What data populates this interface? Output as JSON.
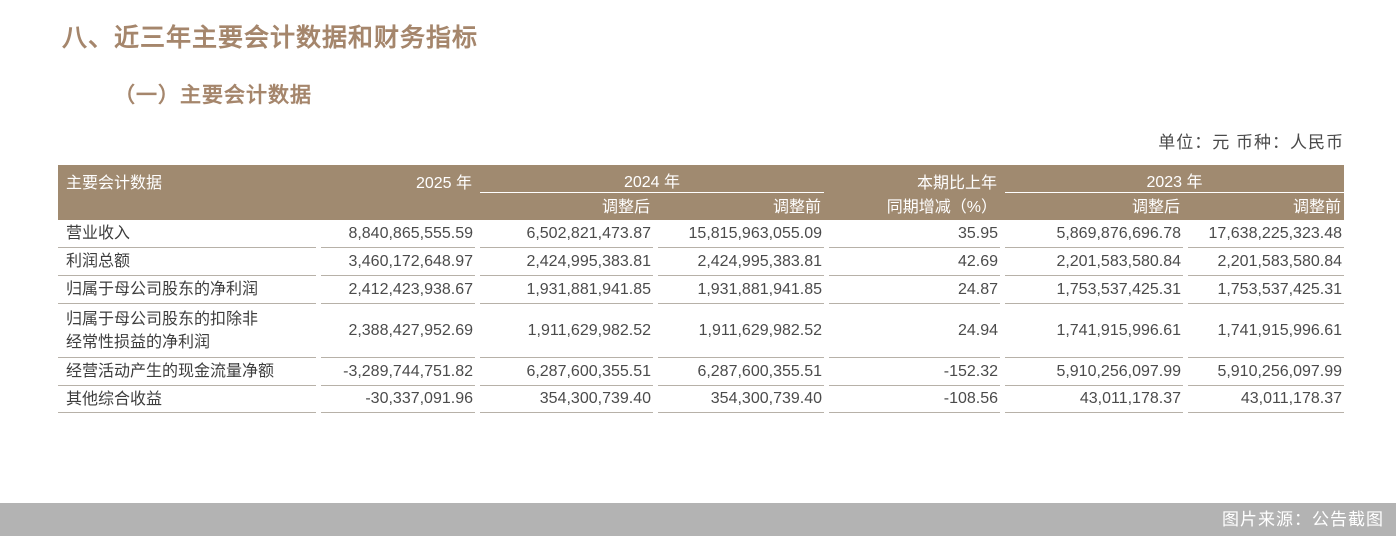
{
  "page": {
    "title": "八、近三年主要会计数据和财务指标",
    "subtitle": "（一）主要会计数据",
    "unit_note": "单位：元  币种：人民币",
    "source_note": "图片来源：公告截图"
  },
  "colors": {
    "brand_brown": "#a08a70",
    "title_brown": "#a5866c",
    "row_line": "#b7b1a8",
    "source_bar_bg": "#b3b3b3"
  },
  "table": {
    "header": {
      "col_label": "主要会计数据",
      "col_2025": "2025 年",
      "col_2024": "2024 年",
      "col_change_line1": "本期比上年",
      "col_change_line2": "同期增减（%）",
      "col_2023": "2023 年",
      "sub_2024_after": "调整后",
      "sub_2024_before": "调整前",
      "sub_2023_after": "调整后",
      "sub_2023_before": "调整前"
    },
    "rows": [
      {
        "label": "营业收入",
        "y2025": "8,840,865,555.59",
        "y2024_after": "6,502,821,473.87",
        "y2024_before": "15,815,963,055.09",
        "change": "35.95",
        "y2023_after": "5,869,876,696.78",
        "y2023_before": "17,638,225,323.48"
      },
      {
        "label": "利润总额",
        "y2025": "3,460,172,648.97",
        "y2024_after": "2,424,995,383.81",
        "y2024_before": "2,424,995,383.81",
        "change": "42.69",
        "y2023_after": "2,201,583,580.84",
        "y2023_before": "2,201,583,580.84"
      },
      {
        "label": "归属于母公司股东的净利润",
        "y2025": "2,412,423,938.67",
        "y2024_after": "1,931,881,941.85",
        "y2024_before": "1,931,881,941.85",
        "change": "24.87",
        "y2023_after": "1,753,537,425.31",
        "y2023_before": "1,753,537,425.31"
      },
      {
        "label": "归属于母公司股东的扣除非\n经常性损益的净利润",
        "y2025": "2,388,427,952.69",
        "y2024_after": "1,911,629,982.52",
        "y2024_before": "1,911,629,982.52",
        "change": "24.94",
        "y2023_after": "1,741,915,996.61",
        "y2023_before": "1,741,915,996.61"
      },
      {
        "label": "经营活动产生的现金流量净额",
        "y2025": "-3,289,744,751.82",
        "y2024_after": "6,287,600,355.51",
        "y2024_before": "6,287,600,355.51",
        "change": "-152.32",
        "y2023_after": "5,910,256,097.99",
        "y2023_before": "5,910,256,097.99"
      },
      {
        "label": "其他综合收益",
        "y2025": "-30,337,091.96",
        "y2024_after": "354,300,739.40",
        "y2024_before": "354,300,739.40",
        "change": "-108.56",
        "y2023_after": "43,011,178.37",
        "y2023_before": "43,011,178.37"
      }
    ]
  }
}
